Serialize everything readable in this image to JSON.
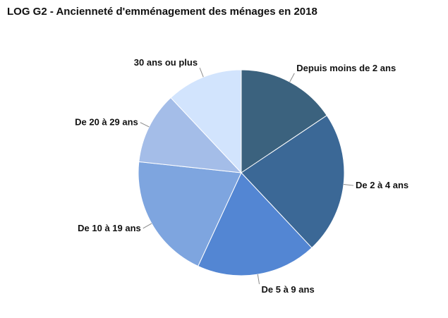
{
  "chart_data": {
    "type": "pie",
    "title": "LOG G2 - Ancienneté d'emménagement des ménages en 2018",
    "categories": [
      "Depuis moins de 2 ans",
      "De 2 à 4 ans",
      "De 5 à 9 ans",
      "De 10 à 19 ans",
      "De 20 à 29 ans",
      "30 ans ou plus"
    ],
    "values": [
      15.6,
      22.4,
      18.9,
      19.8,
      11.3,
      12.0
    ],
    "colors": [
      "#3b627e",
      "#3b6896",
      "#5386d3",
      "#7ea5df",
      "#a4bde8",
      "#d2e4fd"
    ],
    "legend": "none"
  }
}
